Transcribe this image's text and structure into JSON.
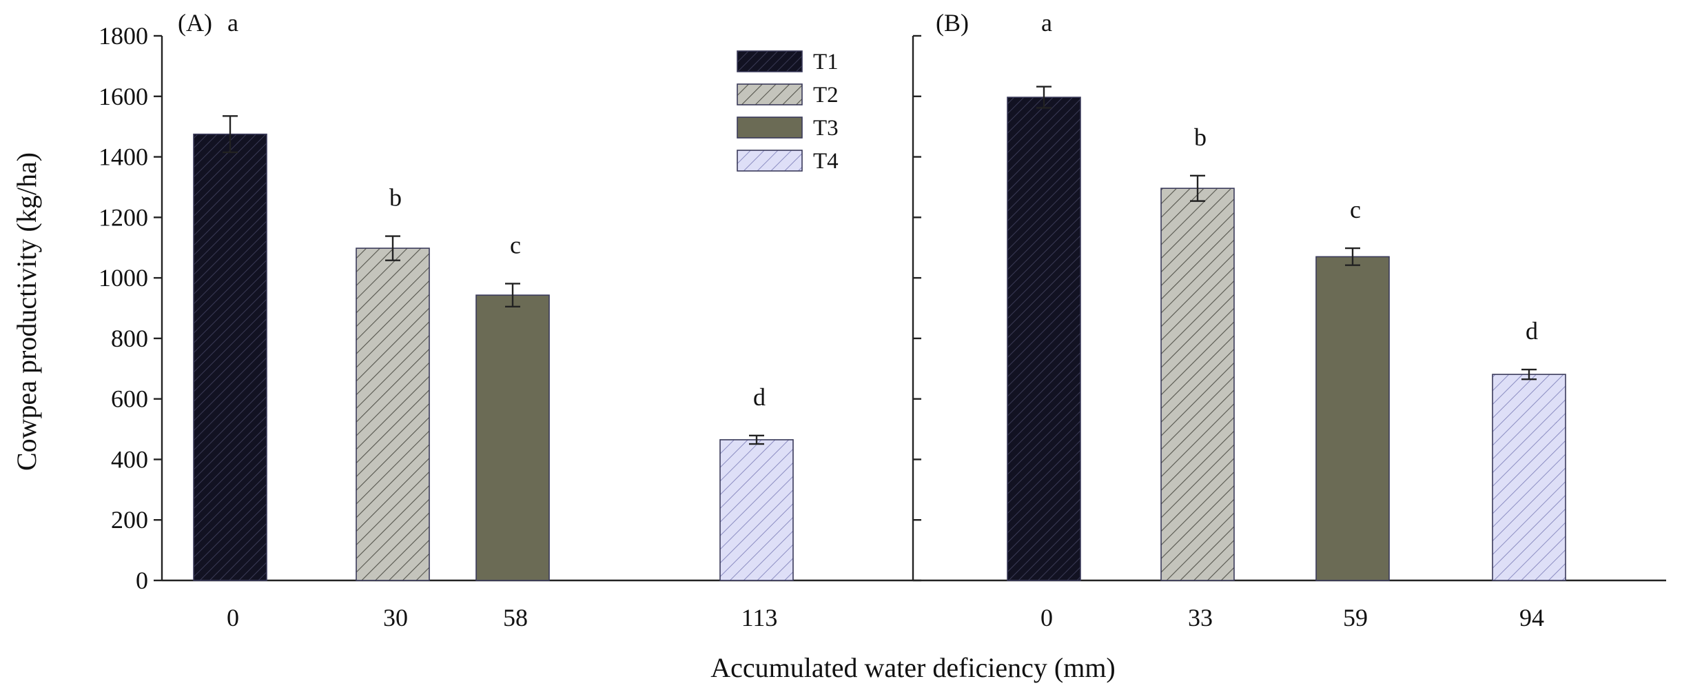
{
  "chart_data": {
    "type": "bar",
    "ylabel": "Cowpea productivity (kg/ha)",
    "xlabel": "Accumulated water deficiency (mm)",
    "ylim": [
      0,
      1800
    ],
    "yticks": [
      "0",
      "200",
      "400",
      "600",
      "800",
      "1000",
      "1200",
      "1400",
      "1600",
      "1800"
    ],
    "legend": {
      "position": "top-center of panel A",
      "entries": [
        {
          "name": "T1",
          "pattern": "t1"
        },
        {
          "name": "T2",
          "pattern": "t2"
        },
        {
          "name": "T3",
          "pattern": "t3"
        },
        {
          "name": "T4",
          "pattern": "t4"
        }
      ]
    },
    "colors": {
      "T1": "#121222",
      "T2": "#c4c4bc",
      "T3": "#6b6b55",
      "T4": "#d7d8f5",
      "axis": "#222222"
    },
    "panels": [
      {
        "label": "(A)",
        "categories": [
          "0",
          "30",
          "58",
          "113"
        ],
        "series": [
          "T1",
          "T2",
          "T3",
          "T4"
        ],
        "values": [
          1475,
          1098,
          943,
          465
        ],
        "errors": [
          60,
          40,
          38,
          14
        ],
        "letters": [
          "a",
          "b",
          "c",
          "d"
        ]
      },
      {
        "label": "(B)",
        "categories": [
          "0",
          "33",
          "59",
          "94"
        ],
        "series": [
          "T1",
          "T2",
          "T3",
          "T4"
        ],
        "values": [
          1597,
          1296,
          1070,
          681
        ],
        "errors": [
          35,
          42,
          28,
          16
        ],
        "letters": [
          "a",
          "b",
          "c",
          "d"
        ]
      }
    ]
  }
}
